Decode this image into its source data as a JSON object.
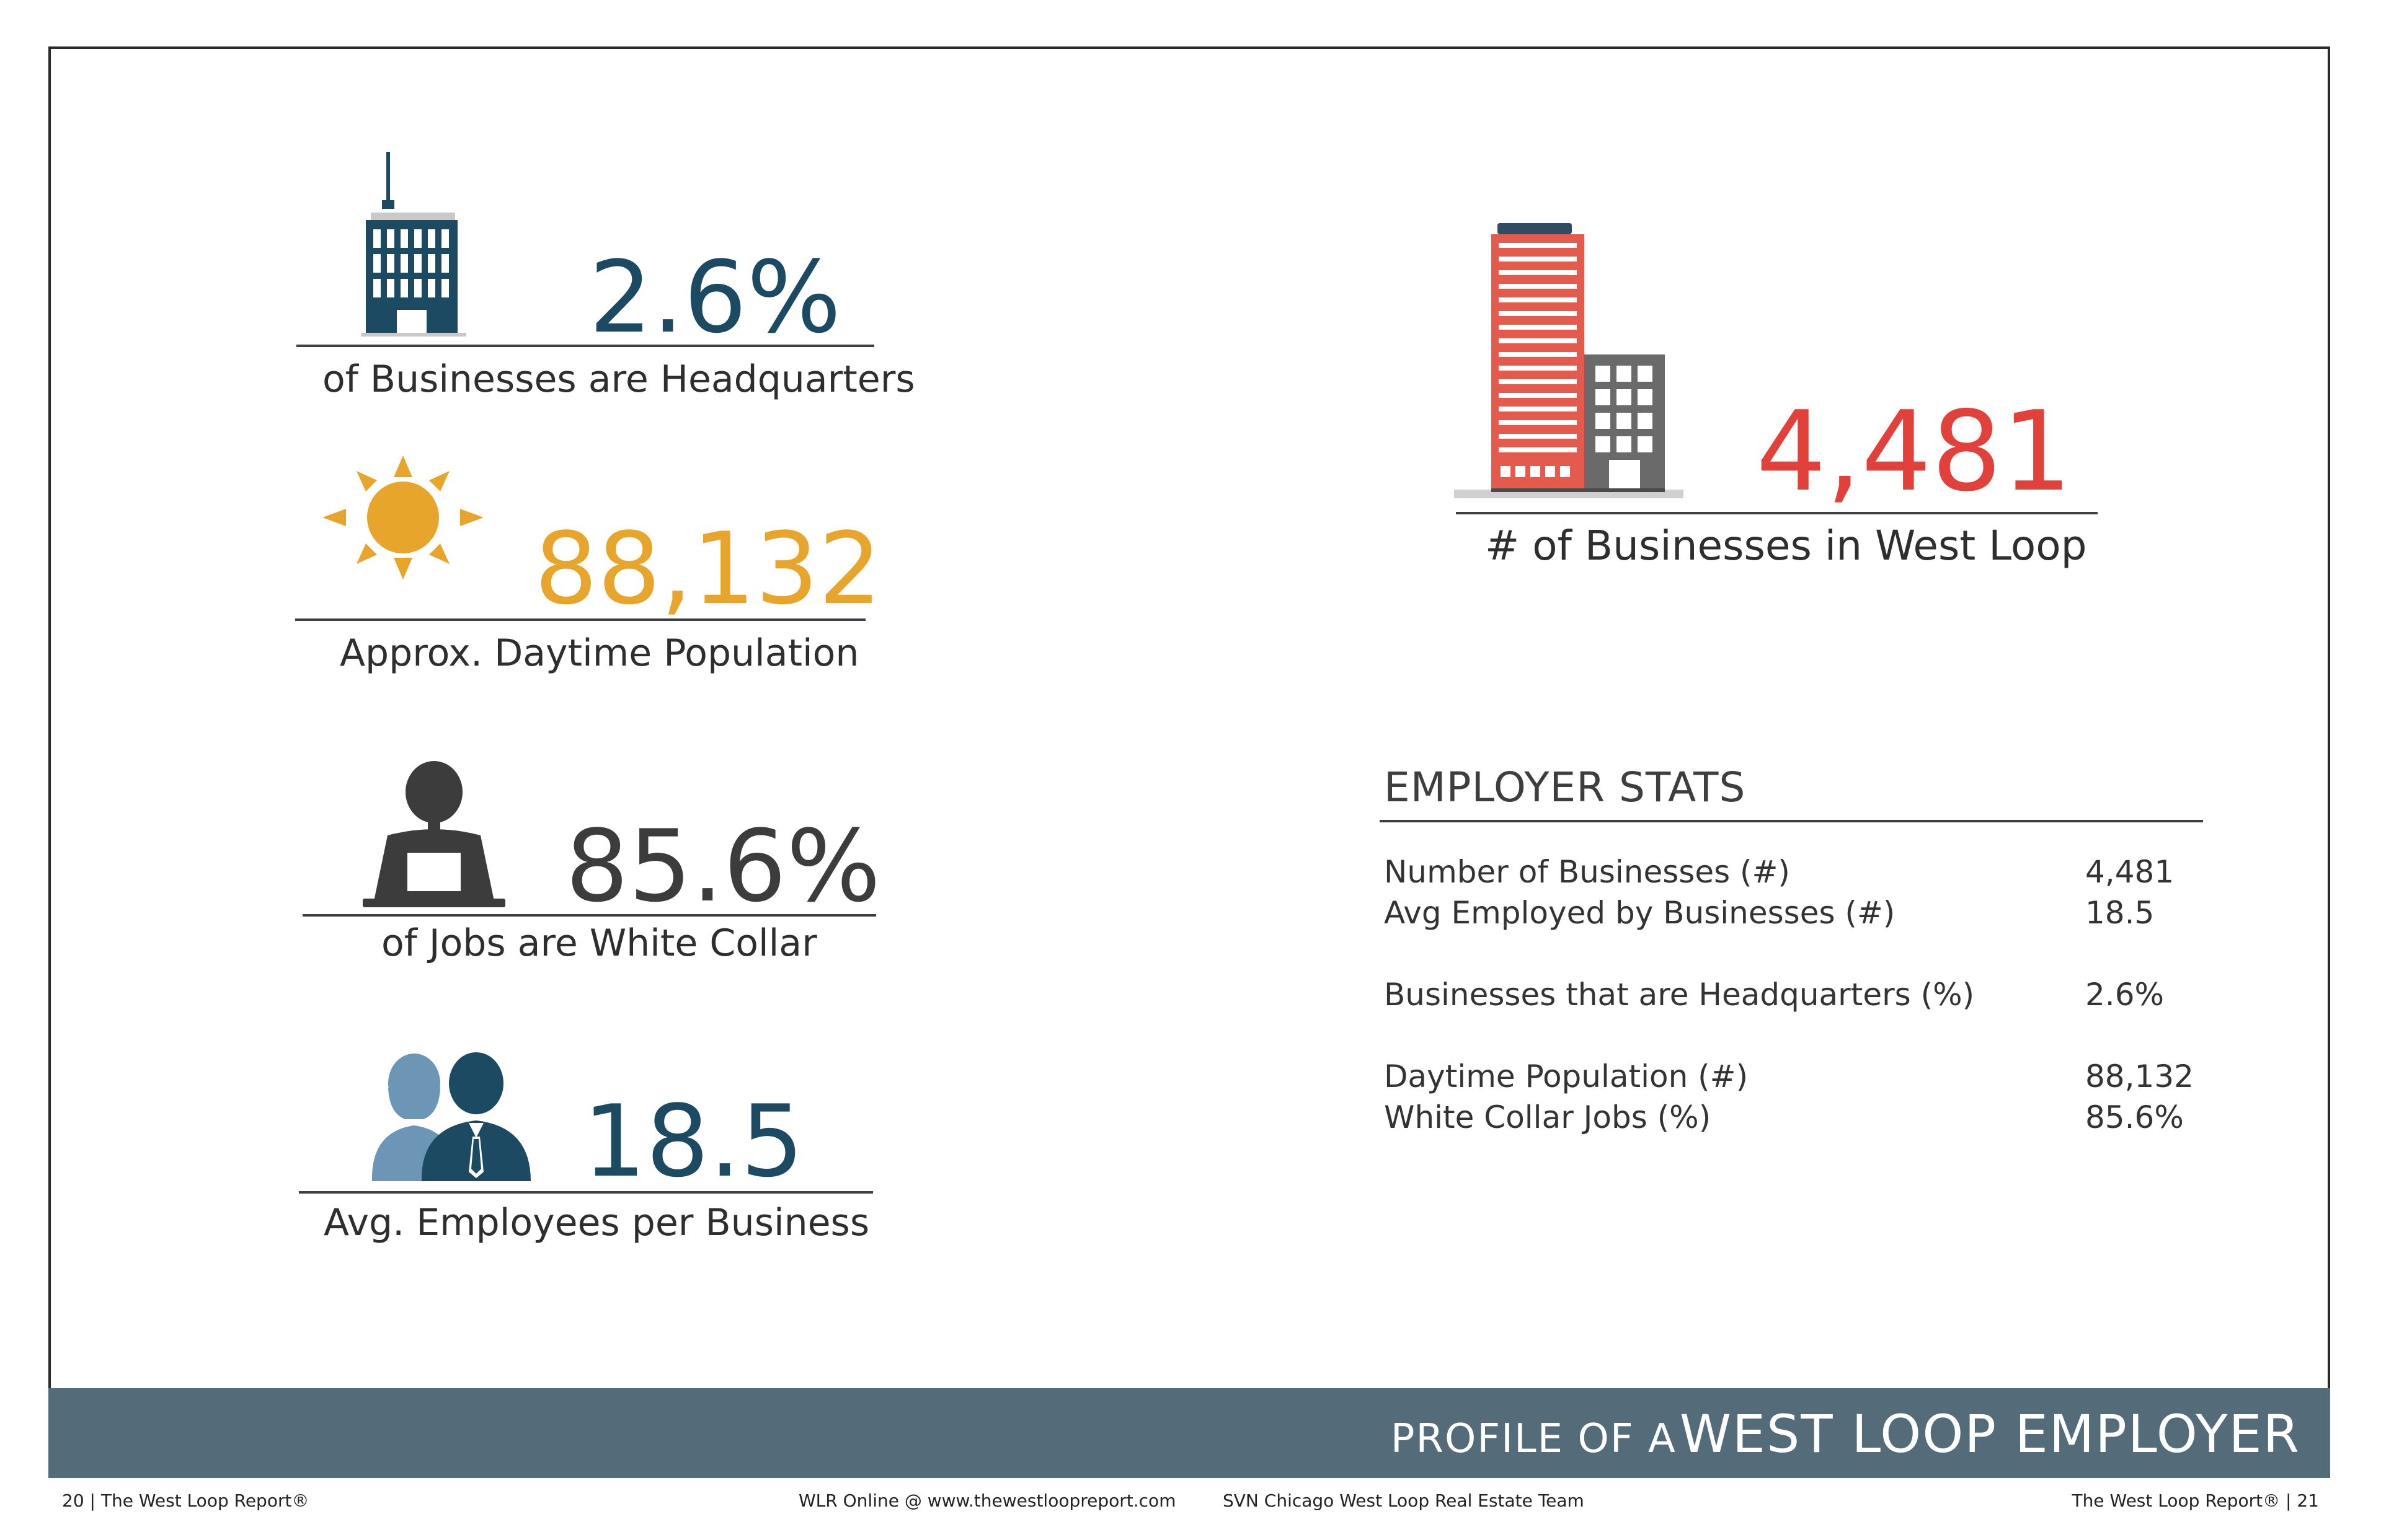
{
  "stats": {
    "headquarters": {
      "value": "2.6%",
      "caption": "of Businesses are Headquarters",
      "icon": "office-tower-icon",
      "color": "#1d4a63"
    },
    "daytime": {
      "value": "88,132",
      "caption": "Approx. Daytime Population",
      "icon": "sun-icon",
      "color": "#e8a52c"
    },
    "white_collar": {
      "value": "85.6%",
      "caption": "of Jobs are White Collar",
      "icon": "office-worker-icon",
      "color": "#3c3c3c"
    },
    "employees": {
      "value": "18.5",
      "caption": "Avg. Employees per Business",
      "icon": "people-icon",
      "color": "#1d4a63"
    },
    "businesses": {
      "value": "4,481",
      "caption": "# of Businesses in West Loop",
      "icon": "buildings-icon",
      "color": "#e2403a"
    }
  },
  "employer_stats": {
    "title": "EMPLOYER STATS",
    "rows": [
      {
        "label": "Number of Businesses (#)",
        "value": "4,481"
      },
      {
        "label": "Avg Employed by Businesses (#)",
        "value": "18.5"
      },
      {
        "label": "Businesses that are Headquarters (%)",
        "value": "2.6%"
      },
      {
        "label": "Daytime Population (#)",
        "value": "88,132"
      },
      {
        "label": "White Collar Jobs (%)",
        "value": "85.6%"
      }
    ]
  },
  "banner": {
    "prefix": "PROFILE OF A",
    "title": "WEST LOOP EMPLOYER",
    "color": "#546c79"
  },
  "footer": {
    "left": "20  |  The West Loop Report®",
    "center_left": "WLR Online @ www.thewestloopreport.com",
    "center_right": "SVN Chicago West Loop Real Estate Team",
    "right": "The West Loop Report®  |  21"
  }
}
